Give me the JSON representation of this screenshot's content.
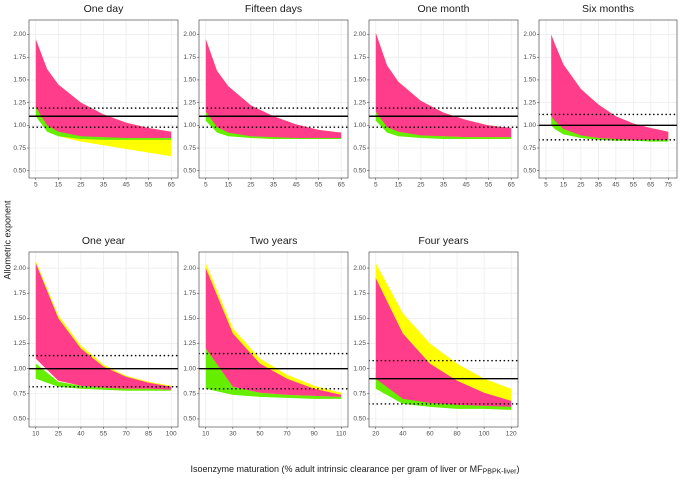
{
  "axis_labels": {
    "y": "Allometric exponent",
    "x": "Isoenzyme maturation (% adult intrinsic clearance per gram of liver or MF",
    "x_subscript": "PBPK-liver",
    "x_suffix": ")"
  },
  "chart_data": [
    {
      "type": "band",
      "title": "One day",
      "x": [
        5,
        10,
        15,
        25,
        35,
        45,
        55,
        65
      ],
      "series": [
        {
          "color": "#ffff00",
          "values": [
            1.95,
            1.62,
            1.45,
            1.25,
            1.12,
            1.03,
            0.97,
            0.93
          ],
          "lower": [
            1.15,
            0.95,
            0.88,
            0.82,
            0.78,
            0.74,
            0.7,
            0.66
          ]
        },
        {
          "color": "#66ee00",
          "values": [
            1.2,
            1.05,
            0.97,
            0.91,
            0.89,
            0.88,
            0.87,
            0.87
          ],
          "lower": [
            1.1,
            0.93,
            0.88,
            0.85,
            0.84,
            0.84,
            0.84,
            0.84
          ]
        },
        {
          "color": "#ff3d8b",
          "values": [
            1.95,
            1.62,
            1.45,
            1.25,
            1.12,
            1.03,
            0.97,
            0.93
          ],
          "lower": [
            1.2,
            1.0,
            0.93,
            0.88,
            0.87,
            0.86,
            0.86,
            0.86
          ]
        }
      ],
      "hlines": [
        {
          "value": 1.1,
          "style": "solid"
        },
        {
          "value": 1.19,
          "style": "dotted"
        },
        {
          "value": 0.98,
          "style": "dotted"
        }
      ],
      "xlim": [
        2,
        68
      ],
      "xticks": [
        5,
        15,
        25,
        35,
        45,
        55,
        65
      ],
      "ylim": [
        0.42,
        2.16
      ],
      "yticks": [
        {
          "value": 0.5,
          "label": "0.50"
        },
        {
          "value": 0.75,
          "label": "0.75"
        },
        {
          "value": 1.0,
          "label": "1.00"
        },
        {
          "value": 1.25,
          "label": "1.25"
        },
        {
          "value": 1.5,
          "label": "1.50"
        },
        {
          "value": 1.75,
          "label": "1.75"
        },
        {
          "value": 2.0,
          "label": "2.00"
        }
      ],
      "grid": true
    },
    {
      "type": "band",
      "title": "Fifteen days",
      "x": [
        5,
        10,
        15,
        25,
        35,
        45,
        55,
        65
      ],
      "series": [
        {
          "color": "#ffff00",
          "values": [
            1.95,
            1.6,
            1.43,
            1.22,
            1.1,
            1.01,
            0.95,
            0.92
          ],
          "lower": [
            1.12,
            0.95,
            0.9,
            0.86,
            0.85,
            0.85,
            0.85,
            0.85
          ]
        },
        {
          "color": "#66ee00",
          "values": [
            1.15,
            1.0,
            0.94,
            0.9,
            0.88,
            0.87,
            0.87,
            0.87
          ],
          "lower": [
            1.05,
            0.92,
            0.88,
            0.86,
            0.85,
            0.85,
            0.85,
            0.85
          ]
        },
        {
          "color": "#ff3d8b",
          "values": [
            1.95,
            1.6,
            1.43,
            1.22,
            1.1,
            1.01,
            0.95,
            0.92
          ],
          "lower": [
            1.15,
            0.98,
            0.92,
            0.88,
            0.87,
            0.86,
            0.86,
            0.86
          ]
        }
      ],
      "hlines": [
        {
          "value": 1.1,
          "style": "solid"
        },
        {
          "value": 1.19,
          "style": "dotted"
        },
        {
          "value": 0.98,
          "style": "dotted"
        }
      ],
      "xlim": [
        2,
        68
      ],
      "xticks": [
        5,
        15,
        25,
        35,
        45,
        55,
        65
      ],
      "ylim": [
        0.42,
        2.16
      ],
      "yticks": [
        {
          "value": 0.5,
          "label": "0.50"
        },
        {
          "value": 0.75,
          "label": "0.75"
        },
        {
          "value": 1.0,
          "label": "1.00"
        },
        {
          "value": 1.25,
          "label": "1.25"
        },
        {
          "value": 1.5,
          "label": "1.50"
        },
        {
          "value": 1.75,
          "label": "1.75"
        },
        {
          "value": 2.0,
          "label": "2.00"
        }
      ],
      "grid": true
    },
    {
      "type": "band",
      "title": "One month",
      "x": [
        5,
        10,
        15,
        25,
        35,
        45,
        55,
        65
      ],
      "series": [
        {
          "color": "#ffff00",
          "values": [
            2.02,
            1.66,
            1.48,
            1.27,
            1.14,
            1.06,
            1.0,
            0.97
          ],
          "lower": [
            1.12,
            0.95,
            0.9,
            0.87,
            0.86,
            0.86,
            0.86,
            0.86
          ]
        },
        {
          "color": "#66ee00",
          "values": [
            1.15,
            1.0,
            0.94,
            0.9,
            0.88,
            0.87,
            0.87,
            0.87
          ],
          "lower": [
            1.05,
            0.92,
            0.88,
            0.86,
            0.85,
            0.85,
            0.85,
            0.85
          ]
        },
        {
          "color": "#ff3d8b",
          "values": [
            2.02,
            1.66,
            1.48,
            1.27,
            1.14,
            1.06,
            1.0,
            0.97
          ],
          "lower": [
            1.15,
            0.98,
            0.93,
            0.89,
            0.88,
            0.87,
            0.87,
            0.87
          ]
        }
      ],
      "hlines": [
        {
          "value": 1.1,
          "style": "solid"
        },
        {
          "value": 1.19,
          "style": "dotted"
        },
        {
          "value": 0.98,
          "style": "dotted"
        }
      ],
      "xlim": [
        2,
        68
      ],
      "xticks": [
        5,
        15,
        25,
        35,
        45,
        55,
        65
      ],
      "ylim": [
        0.42,
        2.16
      ],
      "yticks": [
        {
          "value": 0.5,
          "label": "0.50"
        },
        {
          "value": 0.75,
          "label": "0.75"
        },
        {
          "value": 1.0,
          "label": "1.00"
        },
        {
          "value": 1.25,
          "label": "1.25"
        },
        {
          "value": 1.5,
          "label": "1.50"
        },
        {
          "value": 1.75,
          "label": "1.75"
        },
        {
          "value": 2.0,
          "label": "2.00"
        }
      ],
      "grid": true
    },
    {
      "type": "band",
      "title": "Six months",
      "x": [
        8,
        10,
        15,
        25,
        35,
        45,
        55,
        65,
        75
      ],
      "series": [
        {
          "color": "#ffff00",
          "values": [
            2.0,
            1.9,
            1.67,
            1.4,
            1.23,
            1.1,
            1.02,
            0.97,
            0.93
          ],
          "lower": [
            1.08,
            1.03,
            0.95,
            0.88,
            0.86,
            0.85,
            0.84,
            0.84,
            0.84
          ]
        },
        {
          "color": "#66ee00",
          "values": [
            1.12,
            1.06,
            0.97,
            0.9,
            0.87,
            0.86,
            0.85,
            0.85,
            0.85
          ],
          "lower": [
            1.0,
            0.96,
            0.9,
            0.86,
            0.84,
            0.83,
            0.83,
            0.82,
            0.82
          ]
        },
        {
          "color": "#ff3d8b",
          "values": [
            2.0,
            1.9,
            1.67,
            1.4,
            1.23,
            1.1,
            1.02,
            0.97,
            0.93
          ],
          "lower": [
            1.1,
            1.05,
            0.96,
            0.89,
            0.86,
            0.85,
            0.84,
            0.84,
            0.84
          ]
        }
      ],
      "hlines": [
        {
          "value": 1.0,
          "style": "solid"
        },
        {
          "value": 1.12,
          "style": "dotted"
        },
        {
          "value": 0.84,
          "style": "dotted"
        }
      ],
      "xlim": [
        1,
        80
      ],
      "xticks": [
        5,
        15,
        25,
        35,
        45,
        55,
        65,
        75
      ],
      "ylim": [
        0.42,
        2.16
      ],
      "yticks": [
        {
          "value": 0.5,
          "label": "0.50"
        },
        {
          "value": 0.75,
          "label": "0.75"
        },
        {
          "value": 1.0,
          "label": "1.00"
        },
        {
          "value": 1.25,
          "label": "1.25"
        },
        {
          "value": 1.5,
          "label": "1.50"
        },
        {
          "value": 1.75,
          "label": "1.75"
        },
        {
          "value": 2.0,
          "label": "2.00"
        }
      ],
      "grid": true
    },
    {
      "type": "band",
      "title": "One year",
      "x": [
        10,
        25,
        40,
        55,
        70,
        85,
        100
      ],
      "series": [
        {
          "color": "#ffff00",
          "values": [
            2.07,
            1.53,
            1.23,
            1.04,
            0.93,
            0.87,
            0.83
          ],
          "lower": [
            1.1,
            0.88,
            0.83,
            0.81,
            0.8,
            0.8,
            0.79
          ]
        },
        {
          "color": "#66ee00",
          "values": [
            1.05,
            0.87,
            0.83,
            0.81,
            0.8,
            0.8,
            0.79
          ],
          "lower": [
            0.9,
            0.82,
            0.8,
            0.79,
            0.78,
            0.78,
            0.78
          ]
        },
        {
          "color": "#ff3d8b",
          "values": [
            2.05,
            1.5,
            1.2,
            1.02,
            0.92,
            0.86,
            0.82
          ],
          "lower": [
            1.1,
            0.88,
            0.83,
            0.81,
            0.8,
            0.8,
            0.79
          ]
        }
      ],
      "hlines": [
        {
          "value": 1.0,
          "style": "solid"
        },
        {
          "value": 1.13,
          "style": "dotted"
        },
        {
          "value": 0.82,
          "style": "dotted"
        }
      ],
      "xlim": [
        5.5,
        104.5
      ],
      "xticks": [
        10,
        25,
        40,
        55,
        70,
        85,
        100
      ],
      "ylim": [
        0.42,
        2.16
      ],
      "yticks": [
        {
          "value": 0.5,
          "label": "0.50"
        },
        {
          "value": 0.75,
          "label": "0.75"
        },
        {
          "value": 1.0,
          "label": "1.00"
        },
        {
          "value": 1.25,
          "label": "1.25"
        },
        {
          "value": 1.5,
          "label": "1.50"
        },
        {
          "value": 1.75,
          "label": "1.75"
        },
        {
          "value": 2.0,
          "label": "2.00"
        }
      ],
      "grid": true
    },
    {
      "type": "band",
      "title": "Two years",
      "x": [
        10,
        30,
        50,
        70,
        90,
        110
      ],
      "series": [
        {
          "color": "#ffff00",
          "values": [
            2.05,
            1.4,
            1.1,
            0.94,
            0.83,
            0.76
          ],
          "lower": [
            1.2,
            0.82,
            0.76,
            0.74,
            0.73,
            0.72
          ]
        },
        {
          "color": "#66ee00",
          "values": [
            1.2,
            0.82,
            0.76,
            0.74,
            0.73,
            0.72
          ],
          "lower": [
            0.8,
            0.74,
            0.72,
            0.71,
            0.7,
            0.7
          ]
        },
        {
          "color": "#ff3d8b",
          "values": [
            2.0,
            1.35,
            1.05,
            0.9,
            0.8,
            0.74
          ],
          "lower": [
            1.2,
            0.82,
            0.76,
            0.74,
            0.73,
            0.72
          ]
        }
      ],
      "hlines": [
        {
          "value": 1.0,
          "style": "solid"
        },
        {
          "value": 1.15,
          "style": "dotted"
        },
        {
          "value": 0.8,
          "style": "dotted"
        }
      ],
      "xlim": [
        5,
        115
      ],
      "xticks": [
        10,
        30,
        50,
        70,
        90,
        110
      ],
      "ylim": [
        0.42,
        2.16
      ],
      "yticks": [
        {
          "value": 0.5,
          "label": "0.50"
        },
        {
          "value": 0.75,
          "label": "0.75"
        },
        {
          "value": 1.0,
          "label": "1.00"
        },
        {
          "value": 1.25,
          "label": "1.25"
        },
        {
          "value": 1.5,
          "label": "1.50"
        },
        {
          "value": 1.75,
          "label": "1.75"
        },
        {
          "value": 2.0,
          "label": "2.00"
        }
      ],
      "grid": true
    },
    {
      "type": "band",
      "title": "Four years",
      "x": [
        20,
        40,
        60,
        80,
        100,
        120
      ],
      "series": [
        {
          "color": "#ffff00",
          "values": [
            2.05,
            1.55,
            1.25,
            1.05,
            0.9,
            0.8
          ],
          "lower": [
            0.9,
            0.7,
            0.66,
            0.64,
            0.63,
            0.62
          ]
        },
        {
          "color": "#66ee00",
          "values": [
            0.95,
            0.72,
            0.67,
            0.65,
            0.64,
            0.63
          ],
          "lower": [
            0.8,
            0.65,
            0.62,
            0.6,
            0.6,
            0.59
          ]
        },
        {
          "color": "#ff3d8b",
          "values": [
            1.9,
            1.35,
            1.05,
            0.88,
            0.76,
            0.68
          ],
          "lower": [
            0.9,
            0.7,
            0.66,
            0.64,
            0.63,
            0.62
          ]
        }
      ],
      "hlines": [
        {
          "value": 0.9,
          "style": "solid"
        },
        {
          "value": 1.08,
          "style": "dotted"
        },
        {
          "value": 0.65,
          "style": "dotted"
        }
      ],
      "xlim": [
        15,
        125
      ],
      "xticks": [
        20,
        40,
        60,
        80,
        100,
        120
      ],
      "ylim": [
        0.42,
        2.16
      ],
      "yticks": [
        {
          "value": 0.5,
          "label": "0.50"
        },
        {
          "value": 0.75,
          "label": "0.75"
        },
        {
          "value": 1.0,
          "label": "1.00"
        },
        {
          "value": 1.25,
          "label": "1.25"
        },
        {
          "value": 1.5,
          "label": "1.50"
        },
        {
          "value": 1.75,
          "label": "1.75"
        },
        {
          "value": 2.0,
          "label": "2.00"
        }
      ],
      "grid": true
    }
  ]
}
